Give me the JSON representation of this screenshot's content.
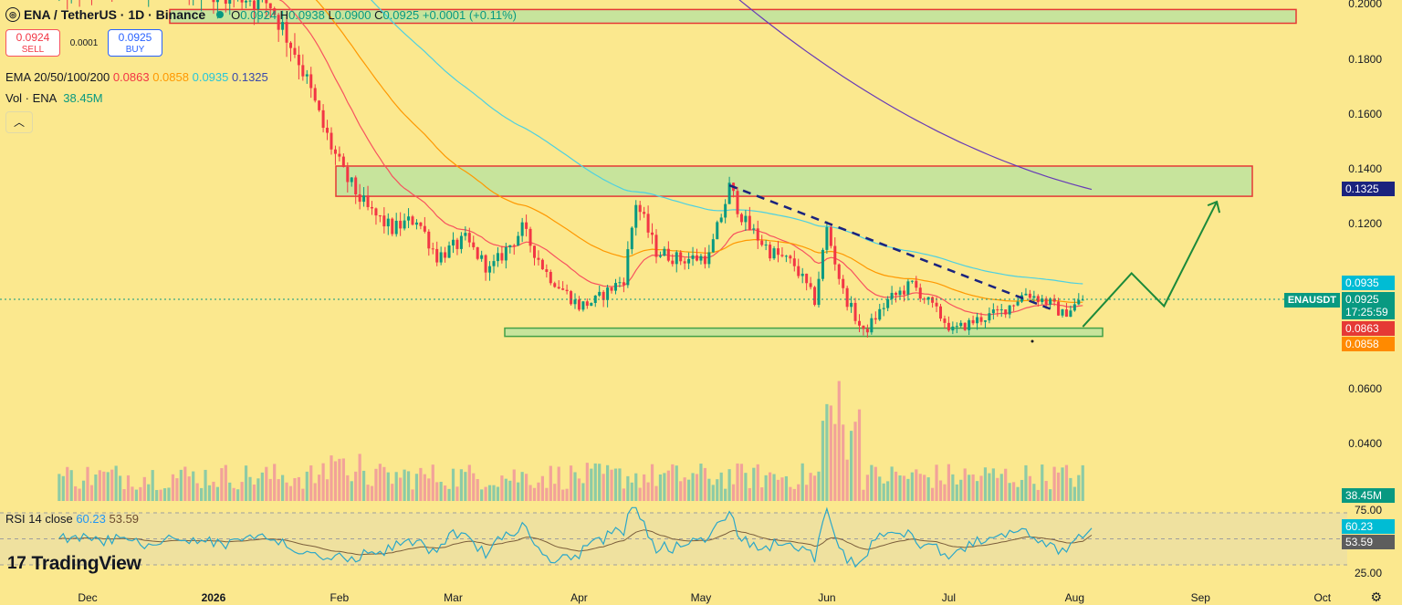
{
  "header": {
    "exchange_icon": "ena-token-icon",
    "symbol_line": "ENA / TetherUS · 1D · Binance",
    "open_key": "O",
    "open": "0.0924",
    "high_key": "H",
    "high": "0.0938",
    "low_key": "L",
    "low": "0.0900",
    "close_key": "C",
    "close": "0.0925",
    "change": "+0.0001 (+0.11%)"
  },
  "trade": {
    "sell_price": "0.0924",
    "sell_label": "SELL",
    "spread": "0.0001",
    "buy_price": "0.0925",
    "buy_label": "BUY"
  },
  "ema_legend": {
    "label": "EMA 20/50/100/200",
    "v20": "0.0863",
    "v50": "0.0858",
    "v100": "0.0935",
    "v200": "0.1325"
  },
  "vol_legend": {
    "label": "Vol · ENA",
    "value": "38.45M"
  },
  "rsi_legend": {
    "label": "RSI 14 close",
    "rsi": "60.23",
    "ma": "53.59"
  },
  "branding": {
    "name": "TradingView",
    "icon": "tradingview-logo-icon",
    "settings_icon": "gear-icon"
  },
  "collapse_icon": "chevron-up-icon",
  "price_axis": {
    "ticks": [
      "0.2000",
      "0.1800",
      "0.1600",
      "0.1400",
      "0.1200",
      "0.0600",
      "0.0400"
    ],
    "rsi_ticks": [
      "75.00",
      "25.00"
    ],
    "labels": {
      "ema200": "0.1325",
      "ema100": "0.0935",
      "last": "0.0925",
      "countdown": "17:25:59",
      "ema20": "0.0863",
      "ema50": "0.0858",
      "volume": "38.45M",
      "rsi": "60.23",
      "rsi_ma": "53.59"
    },
    "symbol_tag": "ENAUSDT"
  },
  "time_axis": [
    "Dec",
    "2026",
    "Feb",
    "Mar",
    "Apr",
    "May",
    "Jun",
    "Jul",
    "Aug",
    "Sep",
    "Oct"
  ],
  "colors": {
    "background": "#fbe88e",
    "up": "#089981",
    "down": "#f23645",
    "ema20": "#f7525f",
    "ema50": "#ff9800",
    "ema100": "#4dd0e1",
    "ema200": "#673ab7",
    "zone_fill": "#b6e3a0",
    "zone_border_red": "#e53935",
    "zone_border_green": "#43a047",
    "arrow": "#1b8a3a",
    "trendline": "#1a237e"
  },
  "chart_data": {
    "type": "candlestick",
    "symbol": "ENAUSDT",
    "interval": "1D",
    "price_range": [
      0.03,
      0.205
    ],
    "last_price": 0.0925,
    "ema": {
      "ema20": 0.0863,
      "ema50": 0.0858,
      "ema100": 0.0935,
      "ema200": 0.1325
    },
    "ohlc_anchor_path": [
      [
        "2025-11-24",
        0.205
      ],
      [
        "2025-12-10",
        0.21
      ],
      [
        "2026-01-05",
        0.205
      ],
      [
        "2026-01-15",
        0.2
      ],
      [
        "2026-01-22",
        0.18
      ],
      [
        "2026-01-28",
        0.155
      ],
      [
        "2026-02-02",
        0.138
      ],
      [
        "2026-02-08",
        0.125
      ],
      [
        "2026-02-14",
        0.118
      ],
      [
        "2026-02-20",
        0.122
      ],
      [
        "2026-02-25",
        0.108
      ],
      [
        "2026-03-04",
        0.114
      ],
      [
        "2026-03-10",
        0.103
      ],
      [
        "2026-03-18",
        0.118
      ],
      [
        "2026-03-24",
        0.102
      ],
      [
        "2026-04-01",
        0.09
      ],
      [
        "2026-04-05",
        0.092
      ],
      [
        "2026-04-12",
        0.1
      ],
      [
        "2026-04-15",
        0.128
      ],
      [
        "2026-04-20",
        0.11
      ],
      [
        "2026-04-26",
        0.107
      ],
      [
        "2026-05-03",
        0.108
      ],
      [
        "2026-05-08",
        0.133
      ],
      [
        "2026-05-12",
        0.12
      ],
      [
        "2026-05-18",
        0.11
      ],
      [
        "2026-05-24",
        0.105
      ],
      [
        "2026-05-29",
        0.092
      ],
      [
        "2026-06-01",
        0.118
      ],
      [
        "2026-06-05",
        0.095
      ],
      [
        "2026-06-10",
        0.08
      ],
      [
        "2026-06-16",
        0.092
      ],
      [
        "2026-06-22",
        0.098
      ],
      [
        "2026-06-28",
        0.088
      ],
      [
        "2026-07-02",
        0.081
      ],
      [
        "2026-07-08",
        0.085
      ],
      [
        "2026-07-14",
        0.088
      ],
      [
        "2026-07-20",
        0.095
      ],
      [
        "2026-07-26",
        0.091
      ],
      [
        "2026-07-29",
        0.087
      ],
      [
        "2026-08-03",
        0.0925
      ]
    ],
    "zones": [
      {
        "name": "upper resistance",
        "low": 0.193,
        "high": 0.198
      },
      {
        "name": "resistance",
        "low": 0.13,
        "high": 0.141
      },
      {
        "name": "support",
        "low": 0.079,
        "high": 0.082
      }
    ],
    "trendline": [
      [
        "2026-05-08",
        0.134
      ],
      [
        "2026-07-26",
        0.089
      ]
    ],
    "projection": [
      [
        "2026-08-03",
        0.0825
      ],
      [
        "2026-08-15",
        0.102
      ],
      [
        "2026-08-23",
        0.09
      ],
      [
        "2026-09-05",
        0.128
      ]
    ],
    "rsi": {
      "period": 14,
      "value": 60.23,
      "ma": 53.59,
      "upper": 75,
      "lower": 25
    },
    "volume_last": "38.45M"
  }
}
